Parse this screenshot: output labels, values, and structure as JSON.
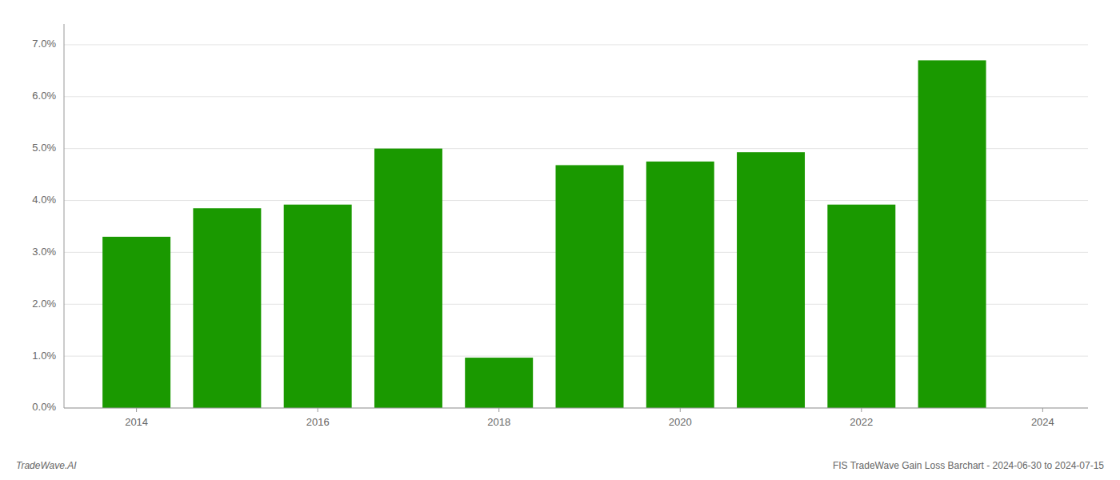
{
  "chart_data": {
    "type": "bar",
    "x": [
      2014,
      2015,
      2016,
      2017,
      2018,
      2019,
      2020,
      2021,
      2022,
      2023
    ],
    "values": [
      0.033,
      0.0385,
      0.0392,
      0.05,
      0.0097,
      0.0468,
      0.0475,
      0.0493,
      0.0392,
      0.067
    ],
    "color": "#1a9900",
    "xlim": [
      2013.2,
      2024.5
    ],
    "xticks": [
      2014,
      2016,
      2018,
      2020,
      2022,
      2024
    ],
    "ylim": [
      0,
      0.074
    ],
    "yticks": [
      {
        "value": 0.0,
        "label": "0.0%"
      },
      {
        "value": 0.01,
        "label": "1.0%"
      },
      {
        "value": 0.02,
        "label": "2.0%"
      },
      {
        "value": 0.03,
        "label": "3.0%"
      },
      {
        "value": 0.04,
        "label": "4.0%"
      },
      {
        "value": 0.05,
        "label": "5.0%"
      },
      {
        "value": 0.06,
        "label": "6.0%"
      },
      {
        "value": 0.07,
        "label": "7.0%"
      }
    ],
    "grid": true,
    "annotations": [
      "TradeWave.AI",
      "FIS TradeWave Gain Loss Barchart - 2024-06-30 to 2024-07-15"
    ]
  }
}
